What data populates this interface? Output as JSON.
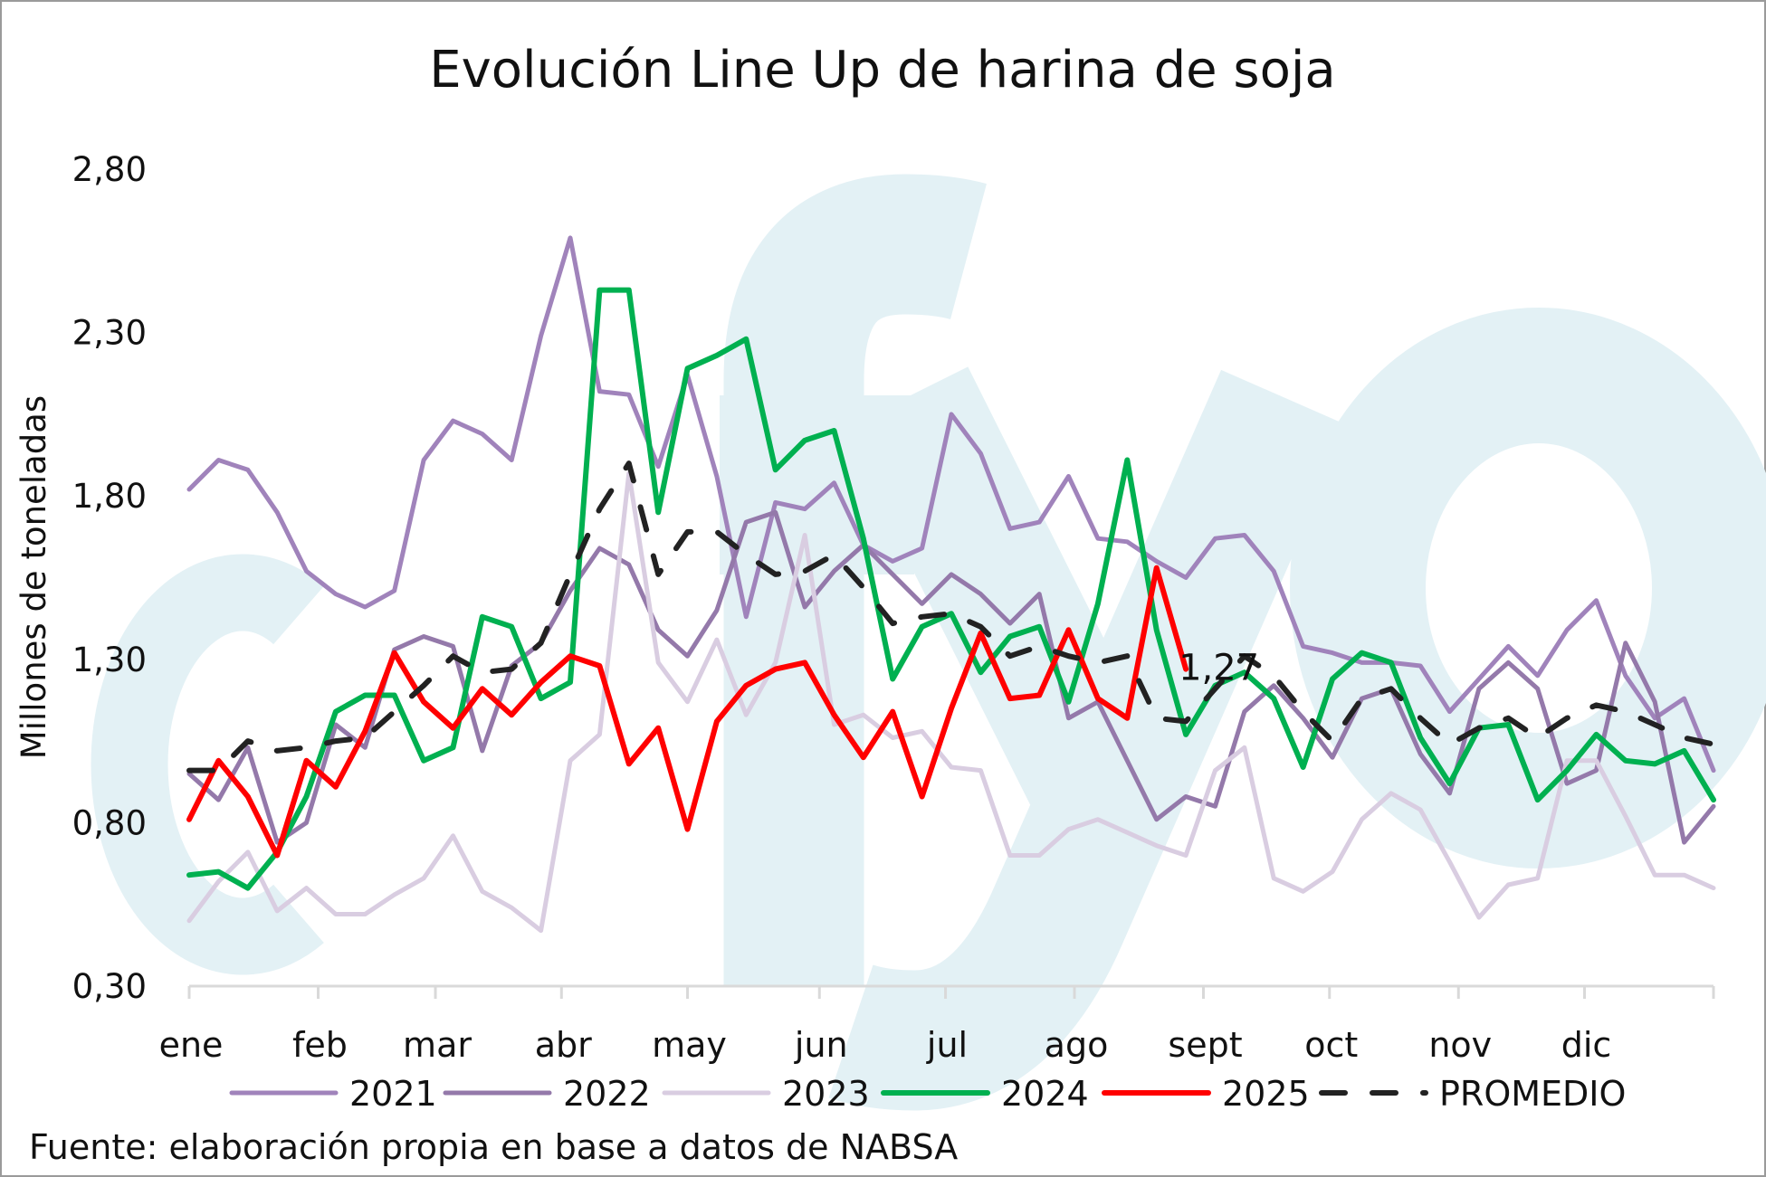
{
  "chart_data": {
    "type": "line",
    "title": "Evolución Line Up de harina de soja",
    "ylabel": "Millones de toneladas",
    "xlabel": "",
    "ylim": [
      0.3,
      2.8
    ],
    "yticks": [
      "0,30",
      "0,80",
      "1,30",
      "1,80",
      "2,30",
      "2,80"
    ],
    "ytick_values": [
      0.3,
      0.8,
      1.3,
      1.8,
      2.3,
      2.8
    ],
    "month_labels": [
      "ene",
      "feb",
      "mar",
      "abr",
      "may",
      "jun",
      "jul",
      "ago",
      "sept",
      "oct",
      "nov",
      "dic"
    ],
    "month_start_weeks": [
      0,
      4.4,
      8.4,
      12.7,
      17.0,
      21.5,
      25.8,
      30.2,
      34.6,
      38.9,
      43.3,
      47.6
    ],
    "weeks": 53,
    "legend_position": "bottom",
    "annotation": {
      "text": "1,27",
      "series": "2025",
      "week": 34
    },
    "source": "Fuente: elaboración propia en base a datos de NABSA",
    "watermark": "cfyo",
    "series": [
      {
        "name": "2021",
        "color": "#a083bb",
        "dash": false,
        "width": 5,
        "values": [
          1.82,
          1.91,
          1.88,
          1.75,
          1.57,
          1.5,
          1.46,
          1.51,
          1.91,
          2.03,
          1.99,
          1.91,
          2.29,
          2.59,
          2.12,
          2.11,
          1.89,
          2.17,
          1.86,
          1.43,
          1.78,
          1.76,
          1.84,
          1.65,
          1.6,
          1.64,
          2.05,
          1.93,
          1.7,
          1.72,
          1.86,
          1.67,
          1.66,
          1.6,
          1.55,
          1.67,
          1.68,
          1.57,
          1.34,
          1.32,
          1.29,
          1.29,
          1.28,
          1.14,
          1.24,
          1.34,
          1.25,
          1.39,
          1.48,
          1.25,
          1.12,
          1.18,
          0.96
        ]
      },
      {
        "name": "2022",
        "color": "#9479aa",
        "dash": false,
        "width": 5,
        "values": [
          0.95,
          0.87,
          1.03,
          0.74,
          0.8,
          1.1,
          1.03,
          1.33,
          1.37,
          1.34,
          1.02,
          1.28,
          1.35,
          1.51,
          1.64,
          1.59,
          1.39,
          1.31,
          1.45,
          1.72,
          1.75,
          1.46,
          1.57,
          1.65,
          1.56,
          1.47,
          1.56,
          1.5,
          1.41,
          1.5,
          1.12,
          1.17,
          0.99,
          0.81,
          0.88,
          0.85,
          1.14,
          1.22,
          1.12,
          1.0,
          1.18,
          1.21,
          1.01,
          0.89,
          1.21,
          1.29,
          1.21,
          0.92,
          0.96,
          1.35,
          1.17,
          0.74,
          0.85
        ]
      },
      {
        "name": "2023",
        "color": "#d9cde1",
        "dash": false,
        "width": 5,
        "values": [
          0.5,
          0.62,
          0.71,
          0.53,
          0.6,
          0.52,
          0.52,
          0.58,
          0.63,
          0.76,
          0.59,
          0.54,
          0.47,
          0.99,
          1.07,
          1.87,
          1.29,
          1.17,
          1.36,
          1.13,
          1.29,
          1.68,
          1.1,
          1.13,
          1.06,
          1.08,
          0.97,
          0.96,
          0.7,
          0.7,
          0.78,
          0.81,
          0.77,
          0.73,
          0.7,
          0.96,
          1.03,
          0.63,
          0.59,
          0.65,
          0.81,
          0.89,
          0.84,
          0.68,
          0.51,
          0.61,
          0.63,
          0.99,
          0.99,
          0.82,
          0.64,
          0.64,
          0.6
        ]
      },
      {
        "name": "2024",
        "color": "#00b050",
        "dash": false,
        "width": 6,
        "values": [
          0.64,
          0.65,
          0.6,
          0.71,
          0.88,
          1.14,
          1.19,
          1.19,
          0.99,
          1.03,
          1.43,
          1.4,
          1.18,
          1.23,
          2.43,
          2.43,
          1.75,
          2.19,
          2.23,
          2.28,
          1.88,
          1.97,
          2.0,
          1.67,
          1.24,
          1.4,
          1.44,
          1.26,
          1.37,
          1.4,
          1.17,
          1.47,
          1.91,
          1.39,
          1.07,
          1.22,
          1.26,
          1.18,
          0.97,
          1.24,
          1.32,
          1.29,
          1.06,
          0.92,
          1.09,
          1.1,
          0.87,
          0.96,
          1.07,
          0.99,
          0.98,
          1.02,
          0.87
        ]
      },
      {
        "name": "2025",
        "color": "#ff0000",
        "dash": false,
        "width": 6,
        "values": [
          0.81,
          0.99,
          0.88,
          0.7,
          0.99,
          0.91,
          1.08,
          1.32,
          1.17,
          1.09,
          1.21,
          1.13,
          1.23,
          1.31,
          1.28,
          0.98,
          1.09,
          0.78,
          1.11,
          1.22,
          1.27,
          1.29,
          1.13,
          1.0,
          1.14,
          0.88,
          1.15,
          1.38,
          1.18,
          1.19,
          1.39,
          1.18,
          1.12,
          1.58,
          1.27
        ]
      },
      {
        "name": "PROMEDIO",
        "color": "#222222",
        "dash": true,
        "width": 6,
        "values": [
          0.96,
          0.96,
          1.05,
          1.02,
          1.03,
          1.05,
          1.06,
          1.14,
          1.22,
          1.31,
          1.26,
          1.27,
          1.35,
          1.56,
          1.76,
          1.9,
          1.56,
          1.69,
          1.69,
          1.62,
          1.56,
          1.57,
          1.62,
          1.52,
          1.41,
          1.43,
          1.44,
          1.4,
          1.31,
          1.34,
          1.31,
          1.29,
          1.31,
          1.12,
          1.11,
          1.21,
          1.31,
          1.25,
          1.14,
          1.05,
          1.18,
          1.21,
          1.12,
          1.04,
          1.09,
          1.12,
          1.06,
          1.12,
          1.16,
          1.14,
          1.1,
          1.06,
          1.04
        ]
      }
    ]
  }
}
